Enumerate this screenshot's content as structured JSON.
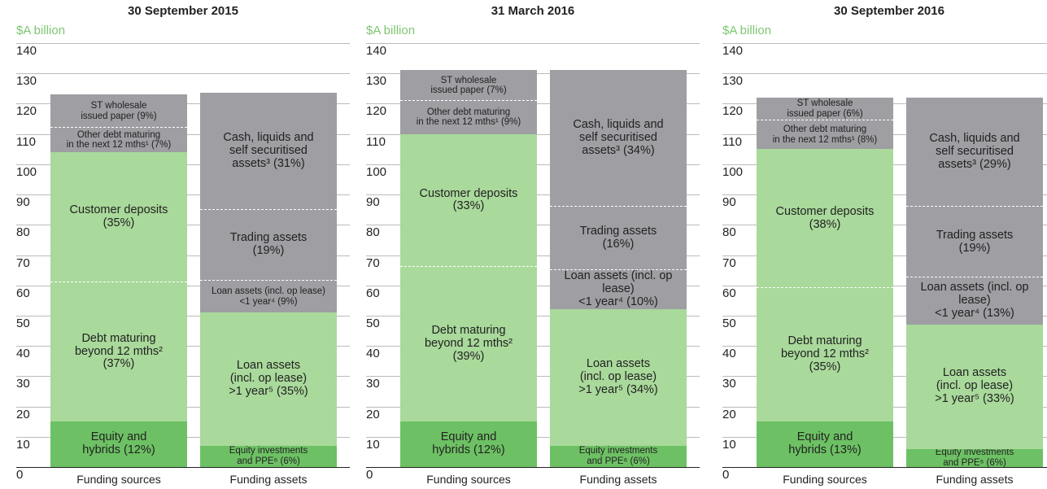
{
  "chart_data": [
    {
      "type": "stacked_bar",
      "title": "30 September 2015",
      "ylabel": "$A billion",
      "categories": [
        "Funding sources",
        "Funding assets"
      ],
      "ylim": [
        0,
        140
      ],
      "yticks": [
        0,
        10,
        20,
        30,
        40,
        50,
        60,
        70,
        80,
        90,
        100,
        110,
        120,
        130,
        140
      ],
      "grid": true,
      "series": [
        {
          "name": "Equity and\nhybrids (12%)",
          "color": "#6dc164",
          "values": [
            15,
            null
          ]
        },
        {
          "name": "Debt maturing\nbeyond 12 mths²\n(37%)",
          "color": "#a9d99b",
          "values": [
            46,
            null
          ]
        },
        {
          "name": "Customer deposits\n(35%)",
          "color": "#a9d99b",
          "values": [
            43,
            null
          ]
        },
        {
          "name": "Other debt maturing\nin the next 12 mths¹ (7%)",
          "color": "#9e9ea3",
          "values": [
            8,
            null
          ]
        },
        {
          "name": "ST wholesale\nissued paper (9%)",
          "color": "#9e9ea3",
          "values": [
            11,
            null
          ]
        },
        {
          "name": "Equity investments\nand PPE⁶ (6%)",
          "color": "#6dc164",
          "values": [
            null,
            7
          ]
        },
        {
          "name": "Loan assets\n(incl. op lease)\n>1 year⁵ (35%)",
          "color": "#a9d99b",
          "values": [
            null,
            44
          ]
        },
        {
          "name": "Loan assets (incl. op lease)\n<1 year⁴ (9%)",
          "color": "#9e9ea3",
          "values": [
            null,
            10.5
          ]
        },
        {
          "name": "Trading assets\n(19%)",
          "color": "#9e9ea3",
          "values": [
            null,
            23.5
          ]
        },
        {
          "name": "Cash, liquids and\nself securitised\nassets³ (31%)",
          "color": "#9e9ea3",
          "values": [
            null,
            38.5
          ]
        }
      ]
    },
    {
      "type": "stacked_bar",
      "title": "31 March 2016",
      "ylabel": "$A billion",
      "categories": [
        "Funding sources",
        "Funding assets"
      ],
      "ylim": [
        0,
        140
      ],
      "yticks": [
        0,
        10,
        20,
        30,
        40,
        50,
        60,
        70,
        80,
        90,
        100,
        110,
        120,
        130,
        140
      ],
      "grid": true,
      "series": [
        {
          "name": "Equity and\nhybrids (12%)",
          "color": "#6dc164",
          "values": [
            15,
            null
          ]
        },
        {
          "name": "Debt maturing\nbeyond 12 mths²\n(39%)",
          "color": "#a9d99b",
          "values": [
            51,
            null
          ]
        },
        {
          "name": "Customer deposits\n(33%)",
          "color": "#a9d99b",
          "values": [
            44,
            null
          ]
        },
        {
          "name": "Other debt maturing\nin the next 12 mths¹ (9%)",
          "color": "#9e9ea3",
          "values": [
            11,
            null
          ]
        },
        {
          "name": "ST wholesale\nissued paper (7%)",
          "color": "#9e9ea3",
          "values": [
            10,
            null
          ]
        },
        {
          "name": "Equity investments\nand PPE⁶ (6%)",
          "color": "#6dc164",
          "values": [
            null,
            7
          ]
        },
        {
          "name": "Loan assets\n(incl. op lease)\n>1 year⁵ (34%)",
          "color": "#a9d99b",
          "values": [
            null,
            45
          ]
        },
        {
          "name": "Loan assets (incl. op lease)\n<1 year⁴ (10%)",
          "color": "#9e9ea3",
          "values": [
            null,
            13
          ]
        },
        {
          "name": "Trading assets\n(16%)",
          "color": "#9e9ea3",
          "values": [
            null,
            21
          ]
        },
        {
          "name": "Cash, liquids and\nself securitised\nassets³ (34%)",
          "color": "#9e9ea3",
          "values": [
            null,
            45
          ]
        }
      ]
    },
    {
      "type": "stacked_bar",
      "title": "30 September 2016",
      "ylabel": "$A billion",
      "categories": [
        "Funding sources",
        "Funding assets"
      ],
      "ylim": [
        0,
        140
      ],
      "yticks": [
        0,
        10,
        20,
        30,
        40,
        50,
        60,
        70,
        80,
        90,
        100,
        110,
        120,
        130,
        140
      ],
      "grid": true,
      "series": [
        {
          "name": "Equity and\nhybrids (13%)",
          "color": "#6dc164",
          "values": [
            15,
            null
          ]
        },
        {
          "name": "Debt maturing\nbeyond 12 mths²\n(35%)",
          "color": "#a9d99b",
          "values": [
            44,
            null
          ]
        },
        {
          "name": "Customer deposits\n(38%)",
          "color": "#a9d99b",
          "values": [
            46,
            null
          ]
        },
        {
          "name": "Other debt maturing\nin the next 12 mths¹ (8%)",
          "color": "#9e9ea3",
          "values": [
            9.5,
            null
          ]
        },
        {
          "name": "ST wholesale\nissued paper (6%)",
          "color": "#9e9ea3",
          "values": [
            7.5,
            null
          ]
        },
        {
          "name": "Equity investments\nand PPE⁶ (6%)",
          "color": "#6dc164",
          "values": [
            null,
            6
          ]
        },
        {
          "name": "Loan assets\n(incl. op lease)\n>1 year⁵ (33%)",
          "color": "#a9d99b",
          "values": [
            null,
            41
          ]
        },
        {
          "name": "Loan assets (incl. op lease)\n<1 year⁴ (13%)",
          "color": "#9e9ea3",
          "values": [
            null,
            15.5
          ]
        },
        {
          "name": "Trading assets\n(19%)",
          "color": "#9e9ea3",
          "values": [
            null,
            23.5
          ]
        },
        {
          "name": "Cash, liquids and\nself securitised\nassets³ (29%)",
          "color": "#9e9ea3",
          "values": [
            null,
            36
          ]
        }
      ]
    }
  ]
}
